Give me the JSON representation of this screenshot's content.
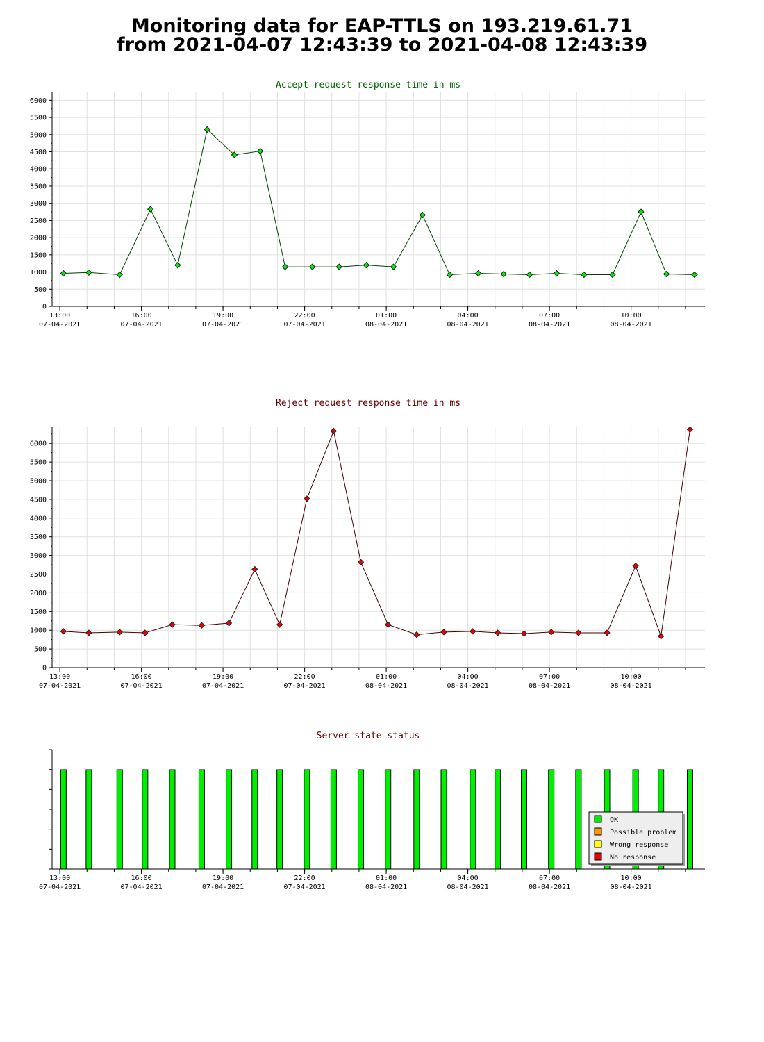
{
  "page": {
    "title_line1": "Monitoring data for EAP-TTLS on 193.219.61.71",
    "title_line2": "from 2021-04-07 12:43:39 to 2021-04-08 12:43:39"
  },
  "chart_data": [
    {
      "type": "line",
      "title": "Accept request response time in ms",
      "xlabel": "",
      "ylabel": "",
      "x_ticks": [
        {
          "time": "13:00",
          "date": "07-04-2021"
        },
        {
          "time": "16:00",
          "date": "07-04-2021"
        },
        {
          "time": "19:00",
          "date": "07-04-2021"
        },
        {
          "time": "22:00",
          "date": "07-04-2021"
        },
        {
          "time": "01:00",
          "date": "08-04-2021"
        },
        {
          "time": "04:00",
          "date": "08-04-2021"
        },
        {
          "time": "07:00",
          "date": "08-04-2021"
        },
        {
          "time": "10:00",
          "date": "08-04-2021"
        }
      ],
      "xlim": [
        "2021-04-07 12:43",
        "2021-04-08 12:43"
      ],
      "ylim": [
        0,
        6250
      ],
      "y_ticks": [
        0,
        500,
        1000,
        1500,
        2000,
        2500,
        3000,
        3500,
        4000,
        4500,
        5000,
        5500,
        6000
      ],
      "grid": true,
      "title_color": "#006600",
      "line_color": "#004400",
      "marker_color": "#00ee00",
      "series": [
        {
          "x": [
            "2021-04-07 13:08",
            "2021-04-07 14:04",
            "2021-04-07 15:12",
            "2021-04-07 16:20",
            "2021-04-07 17:20",
            "2021-04-07 18:25",
            "2021-04-07 19:25",
            "2021-04-07 20:22",
            "2021-04-07 21:17",
            "2021-04-07 22:17",
            "2021-04-07 23:16",
            "2021-04-08 00:16",
            "2021-04-08 01:16",
            "2021-04-08 02:20",
            "2021-04-08 03:20",
            "2021-04-08 04:23",
            "2021-04-08 05:19",
            "2021-04-08 06:16",
            "2021-04-08 07:16",
            "2021-04-08 08:16",
            "2021-04-08 09:19",
            "2021-04-08 10:22",
            "2021-04-08 11:18",
            "2021-04-08 12:20"
          ],
          "y": [
            960,
            985,
            920,
            2830,
            1200,
            5150,
            4410,
            4520,
            1150,
            1150,
            1150,
            1200,
            1150,
            2660,
            920,
            960,
            940,
            920,
            960,
            920,
            920,
            2750,
            940,
            920
          ]
        }
      ]
    },
    {
      "type": "line",
      "title": "Reject request response time in ms",
      "xlabel": "",
      "ylabel": "",
      "x_ticks": [
        {
          "time": "13:00",
          "date": "07-04-2021"
        },
        {
          "time": "16:00",
          "date": "07-04-2021"
        },
        {
          "time": "19:00",
          "date": "07-04-2021"
        },
        {
          "time": "22:00",
          "date": "07-04-2021"
        },
        {
          "time": "01:00",
          "date": "08-04-2021"
        },
        {
          "time": "04:00",
          "date": "08-04-2021"
        },
        {
          "time": "07:00",
          "date": "08-04-2021"
        },
        {
          "time": "10:00",
          "date": "08-04-2021"
        }
      ],
      "xlim": [
        "2021-04-07 12:43",
        "2021-04-08 12:43"
      ],
      "ylim": [
        0,
        6450
      ],
      "y_ticks": [
        0,
        500,
        1000,
        1500,
        2000,
        2500,
        3000,
        3500,
        4000,
        4500,
        5000,
        5500,
        6000
      ],
      "grid": true,
      "title_color": "#660000",
      "line_color": "#440000",
      "marker_color": "#ee0000",
      "series": [
        {
          "x": [
            "2021-04-07 13:08",
            "2021-04-07 14:04",
            "2021-04-07 15:12",
            "2021-04-07 16:08",
            "2021-04-07 17:08",
            "2021-04-07 18:13",
            "2021-04-07 19:13",
            "2021-04-07 20:10",
            "2021-04-07 21:05",
            "2021-04-07 22:05",
            "2021-04-07 23:04",
            "2021-04-08 00:04",
            "2021-04-08 01:04",
            "2021-04-08 02:07",
            "2021-04-08 03:07",
            "2021-04-08 04:11",
            "2021-04-08 05:06",
            "2021-04-08 06:04",
            "2021-04-08 07:04",
            "2021-04-08 08:04",
            "2021-04-08 09:07",
            "2021-04-08 10:10",
            "2021-04-08 11:06",
            "2021-04-08 12:10"
          ],
          "y": [
            970,
            930,
            950,
            930,
            1150,
            1130,
            1190,
            2630,
            1150,
            4520,
            6330,
            2820,
            1150,
            880,
            950,
            970,
            930,
            910,
            950,
            930,
            930,
            2720,
            840,
            6370
          ]
        }
      ]
    },
    {
      "type": "bar",
      "title": "Server state status",
      "xlabel": "",
      "ylabel": "",
      "x_ticks": [
        {
          "time": "13:00",
          "date": "07-04-2021"
        },
        {
          "time": "16:00",
          "date": "07-04-2021"
        },
        {
          "time": "19:00",
          "date": "07-04-2021"
        },
        {
          "time": "22:00",
          "date": "07-04-2021"
        },
        {
          "time": "01:00",
          "date": "08-04-2021"
        },
        {
          "time": "04:00",
          "date": "08-04-2021"
        },
        {
          "time": "07:00",
          "date": "08-04-2021"
        },
        {
          "time": "10:00",
          "date": "08-04-2021"
        }
      ],
      "xlim": [
        "2021-04-07 12:43",
        "2021-04-08 12:43"
      ],
      "title_color": "#660000",
      "bar_color": "#00ee00",
      "legend_position": "bottom-right",
      "legend": [
        {
          "label": "OK",
          "color": "#00ee00"
        },
        {
          "label": "Possible problem",
          "color": "#ff9900"
        },
        {
          "label": "Wrong response",
          "color": "#ffff00"
        },
        {
          "label": "No response",
          "color": "#ee0000"
        }
      ],
      "x": [
        "2021-04-07 13:08",
        "2021-04-07 14:04",
        "2021-04-07 15:12",
        "2021-04-07 16:08",
        "2021-04-07 17:08",
        "2021-04-07 18:13",
        "2021-04-07 19:13",
        "2021-04-07 20:10",
        "2021-04-07 21:05",
        "2021-04-07 22:05",
        "2021-04-07 23:04",
        "2021-04-08 00:04",
        "2021-04-08 01:04",
        "2021-04-08 02:07",
        "2021-04-08 03:07",
        "2021-04-08 04:11",
        "2021-04-08 05:06",
        "2021-04-08 06:04",
        "2021-04-08 07:04",
        "2021-04-08 08:04",
        "2021-04-08 09:07",
        "2021-04-08 10:10",
        "2021-04-08 11:06",
        "2021-04-08 12:10"
      ],
      "status": [
        "OK",
        "OK",
        "OK",
        "OK",
        "OK",
        "OK",
        "OK",
        "OK",
        "OK",
        "OK",
        "OK",
        "OK",
        "OK",
        "OK",
        "OK",
        "OK",
        "OK",
        "OK",
        "OK",
        "OK",
        "OK",
        "OK",
        "OK",
        "OK"
      ]
    }
  ]
}
